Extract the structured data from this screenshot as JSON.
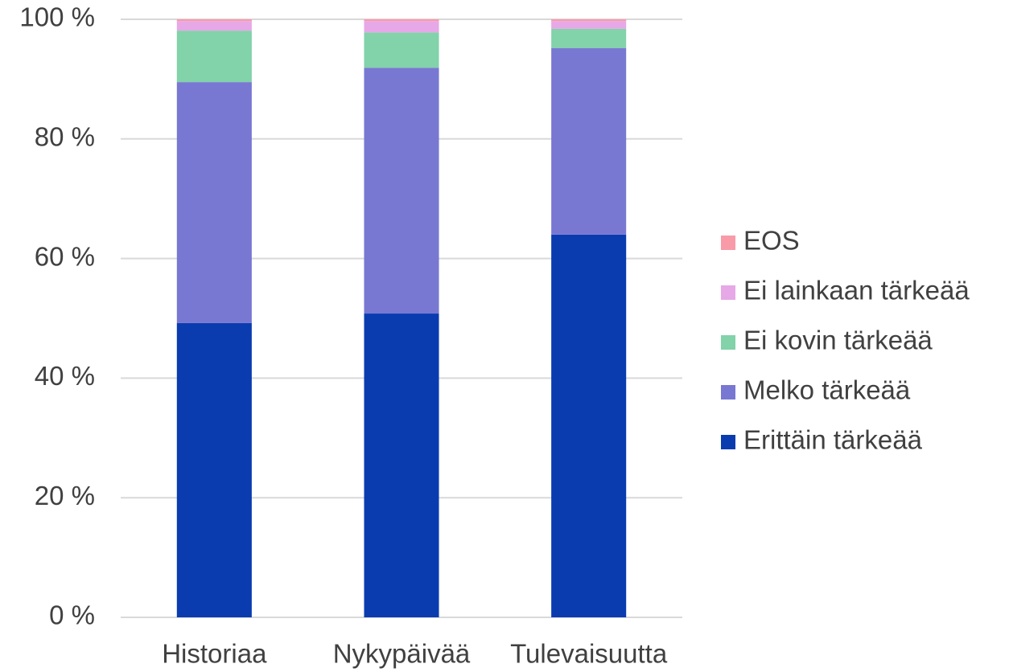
{
  "chart_data": {
    "type": "stacked_bar",
    "categories": [
      "Historiaa",
      "Nykypäivää",
      "Tulevaisuutta"
    ],
    "series": [
      {
        "name": "Erittäin tärkeää",
        "color": "#0a3cb0",
        "values": [
          49.2,
          50.8,
          64.0
        ]
      },
      {
        "name": "Melko tärkeää",
        "color": "#7878d2",
        "values": [
          40.3,
          41.1,
          31.2
        ]
      },
      {
        "name": "Ei kovin tärkeää",
        "color": "#82d2aa",
        "values": [
          8.6,
          5.9,
          3.2
        ]
      },
      {
        "name": "Ei lainkaan tärkeää",
        "color": "#e6a8e6",
        "values": [
          1.6,
          1.9,
          1.3
        ]
      },
      {
        "name": "EOS",
        "color": "#f89aa8",
        "values": [
          0.3,
          0.3,
          0.3
        ]
      }
    ],
    "ylim": [
      0,
      100
    ],
    "yticks": [
      {
        "value": 0,
        "label": "0 %"
      },
      {
        "value": 20,
        "label": "20 %"
      },
      {
        "value": 40,
        "label": "40 %"
      },
      {
        "value": 60,
        "label": "60 %"
      },
      {
        "value": 80,
        "label": "80 %"
      },
      {
        "value": 100,
        "label": "100 %"
      }
    ],
    "grid": true,
    "legend": "right"
  }
}
